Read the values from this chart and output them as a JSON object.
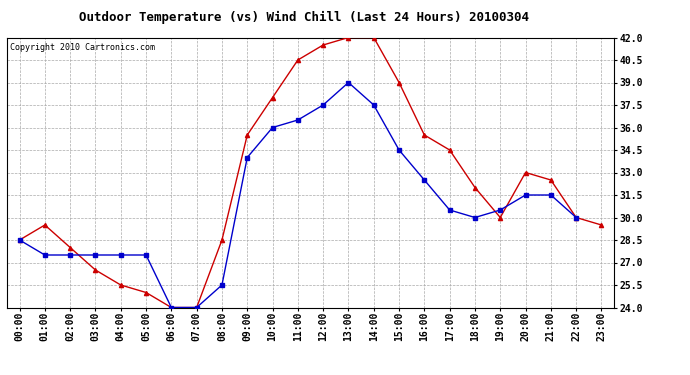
{
  "title": "Outdoor Temperature (vs) Wind Chill (Last 24 Hours) 20100304",
  "copyright": "Copyright 2010 Cartronics.com",
  "x_labels": [
    "00:00",
    "01:00",
    "02:00",
    "03:00",
    "04:00",
    "05:00",
    "06:00",
    "07:00",
    "08:00",
    "09:00",
    "10:00",
    "11:00",
    "12:00",
    "13:00",
    "14:00",
    "15:00",
    "16:00",
    "17:00",
    "18:00",
    "19:00",
    "20:00",
    "21:00",
    "22:00",
    "23:00"
  ],
  "temp_red": [
    28.5,
    29.5,
    28.0,
    26.5,
    25.5,
    25.0,
    24.0,
    24.0,
    28.5,
    35.5,
    38.0,
    40.5,
    41.5,
    42.0,
    42.0,
    39.0,
    35.5,
    34.5,
    32.0,
    30.0,
    33.0,
    32.5,
    30.0,
    29.5
  ],
  "wind_blue": [
    28.5,
    27.5,
    27.5,
    27.5,
    27.5,
    27.5,
    24.0,
    24.0,
    25.5,
    34.0,
    36.0,
    36.5,
    37.5,
    39.0,
    37.5,
    34.5,
    32.5,
    30.5,
    30.0,
    30.5,
    31.5,
    31.5,
    30.0,
    null
  ],
  "ylim": [
    24.0,
    42.0
  ],
  "yticks": [
    24.0,
    25.5,
    27.0,
    28.5,
    30.0,
    31.5,
    33.0,
    34.5,
    36.0,
    37.5,
    39.0,
    40.5,
    42.0
  ],
  "red_color": "#cc0000",
  "blue_color": "#0000cc",
  "bg_color": "#ffffff",
  "grid_color": "#aaaaaa",
  "title_fontsize": 9,
  "copyright_fontsize": 6,
  "tick_fontsize": 7
}
